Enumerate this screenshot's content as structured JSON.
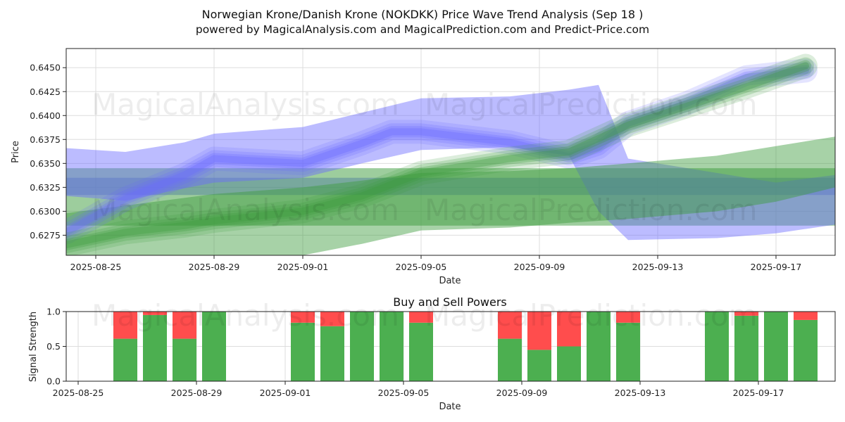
{
  "title": {
    "line1": "Norwegian Krone/Danish Krone (NOKDKK) Price Wave Trend Analysis (Sep 18 )",
    "line2": "powered by MagicalAnalysis.com and MagicalPrediction.com and Predict-Price.com"
  },
  "watermarks": {
    "left": "MagicalAnalysis.com",
    "right": "MagicalPrediction.com"
  },
  "colors": {
    "blue_band": "#6a6aff",
    "green_band": "#3c9c3c",
    "buy": "#4caf50",
    "sell": "#ff4d4d"
  },
  "chart_data": [
    {
      "type": "area",
      "title": "",
      "xlabel": "Date",
      "ylabel": "Price",
      "xlim": [
        "2025-08-24",
        "2025-09-19"
      ],
      "ylim": [
        0.6254,
        0.647
      ],
      "x_ticks": [
        "2025-08-25",
        "2025-08-29",
        "2025-09-01",
        "2025-09-05",
        "2025-09-09",
        "2025-09-13",
        "2025-09-17"
      ],
      "y_ticks": [
        "0.6275",
        "0.6300",
        "0.6325",
        "0.6350",
        "0.6375",
        "0.6400",
        "0.6425",
        "0.6450"
      ],
      "grid": true,
      "series": [
        {
          "color": "blue",
          "band_lower": [
            [
              "2025-08-24",
              0.6316
            ],
            [
              "2025-08-26",
              0.6311
            ],
            [
              "2025-08-28",
              0.6324
            ],
            [
              "2025-08-29",
              0.633
            ],
            [
              "2025-09-01",
              0.6335
            ],
            [
              "2025-09-03",
              0.635
            ],
            [
              "2025-09-05",
              0.6364
            ],
            [
              "2025-09-08",
              0.6367
            ],
            [
              "2025-09-10",
              0.6358
            ],
            [
              "2025-09-11",
              0.63
            ],
            [
              "2025-09-12",
              0.627
            ],
            [
              "2025-09-15",
              0.6272
            ],
            [
              "2025-09-17",
              0.6277
            ],
            [
              "2025-09-19",
              0.6286
            ]
          ],
          "band_upper": [
            [
              "2025-08-24",
              0.6366
            ],
            [
              "2025-08-26",
              0.6362
            ],
            [
              "2025-08-28",
              0.6372
            ],
            [
              "2025-08-29",
              0.6381
            ],
            [
              "2025-09-01",
              0.6388
            ],
            [
              "2025-09-03",
              0.6403
            ],
            [
              "2025-09-05",
              0.6418
            ],
            [
              "2025-09-08",
              0.642
            ],
            [
              "2025-09-10",
              0.6427
            ],
            [
              "2025-09-11",
              0.6432
            ],
            [
              "2025-09-12",
              0.6355
            ],
            [
              "2025-09-15",
              0.634
            ],
            [
              "2025-09-17",
              0.633
            ],
            [
              "2025-09-19",
              0.6338
            ]
          ],
          "wave": [
            [
              "2025-08-24",
              0.6278
            ],
            [
              "2025-08-26",
              0.6313
            ],
            [
              "2025-08-28",
              0.6338
            ],
            [
              "2025-08-29",
              0.6355
            ],
            [
              "2025-09-01",
              0.635
            ],
            [
              "2025-09-03",
              0.6371
            ],
            [
              "2025-09-04",
              0.6383
            ],
            [
              "2025-09-05",
              0.6383
            ],
            [
              "2025-09-08",
              0.6372
            ],
            [
              "2025-09-10",
              0.6357
            ],
            [
              "2025-09-11",
              0.6367
            ],
            [
              "2025-09-12",
              0.6392
            ],
            [
              "2025-09-14",
              0.6413
            ],
            [
              "2025-09-16",
              0.644
            ],
            [
              "2025-09-18",
              0.6447
            ]
          ]
        },
        {
          "color": "green",
          "band_lower": [
            [
              "2025-08-24",
              0.6254
            ],
            [
              "2025-08-29",
              0.6254
            ],
            [
              "2025-09-01",
              0.6254
            ],
            [
              "2025-09-03",
              0.6266
            ],
            [
              "2025-09-05",
              0.628
            ],
            [
              "2025-09-08",
              0.6283
            ],
            [
              "2025-09-10",
              0.6288
            ],
            [
              "2025-09-12",
              0.6292
            ],
            [
              "2025-09-15",
              0.63
            ],
            [
              "2025-09-17",
              0.631
            ],
            [
              "2025-09-19",
              0.6325
            ]
          ],
          "band_upper": [
            [
              "2025-08-24",
              0.6298
            ],
            [
              "2025-08-29",
              0.6318
            ],
            [
              "2025-09-01",
              0.6325
            ],
            [
              "2025-09-03",
              0.6332
            ],
            [
              "2025-09-05",
              0.634
            ],
            [
              "2025-09-08",
              0.6342
            ],
            [
              "2025-09-10",
              0.6345
            ],
            [
              "2025-09-12",
              0.635
            ],
            [
              "2025-09-15",
              0.6358
            ],
            [
              "2025-09-17",
              0.6368
            ],
            [
              "2025-09-19",
              0.6378
            ]
          ],
          "wave": [
            [
              "2025-08-24",
              0.6265
            ],
            [
              "2025-08-26",
              0.6278
            ],
            [
              "2025-08-28",
              0.6285
            ],
            [
              "2025-08-29",
              0.629
            ],
            [
              "2025-09-01",
              0.63
            ],
            [
              "2025-09-03",
              0.6316
            ],
            [
              "2025-09-05",
              0.634
            ],
            [
              "2025-09-08",
              0.6355
            ],
            [
              "2025-09-10",
              0.6362
            ],
            [
              "2025-09-12",
              0.639
            ],
            [
              "2025-09-14",
              0.641
            ],
            [
              "2025-09-16",
              0.643
            ],
            [
              "2025-09-18",
              0.6452
            ]
          ]
        }
      ],
      "flat_bands": [
        {
          "color": "blue",
          "x": [
            "2025-08-24",
            "2025-09-19"
          ],
          "y": [
            0.6317,
            0.6335
          ]
        },
        {
          "color": "green",
          "x": [
            "2025-08-24",
            "2025-09-19"
          ],
          "y": [
            0.6285,
            0.6345
          ]
        }
      ]
    },
    {
      "type": "bar",
      "title": "Buy and Sell Powers",
      "xlabel": "Date",
      "ylabel": "Signal Strength",
      "xlim": [
        "2025-08-24",
        "2025-09-19"
      ],
      "ylim": [
        0,
        1
      ],
      "x_ticks": [
        "2025-08-25",
        "2025-08-29",
        "2025-09-01",
        "2025-09-05",
        "2025-09-09",
        "2025-09-13",
        "2025-09-17"
      ],
      "y_ticks": [
        "0.0",
        "0.5",
        "1.0"
      ],
      "grid": true,
      "series": [
        {
          "name": "buy",
          "x": [
            "2025-08-26",
            "2025-08-27",
            "2025-08-28",
            "2025-08-29",
            "2025-09-01",
            "2025-09-02",
            "2025-09-03",
            "2025-09-04",
            "2025-09-05",
            "2025-09-08",
            "2025-09-09",
            "2025-09-10",
            "2025-09-11",
            "2025-09-12",
            "2025-09-15",
            "2025-09-16",
            "2025-09-17",
            "2025-09-18"
          ],
          "values": [
            0.61,
            0.95,
            0.61,
            1.0,
            0.84,
            0.79,
            1.0,
            1.0,
            0.84,
            0.61,
            0.45,
            0.5,
            1.0,
            0.84,
            1.0,
            0.94,
            1.0,
            0.88
          ]
        },
        {
          "name": "sell",
          "x": [
            "2025-08-26",
            "2025-08-27",
            "2025-08-28",
            "2025-08-29",
            "2025-09-01",
            "2025-09-02",
            "2025-09-03",
            "2025-09-04",
            "2025-09-05",
            "2025-09-08",
            "2025-09-09",
            "2025-09-10",
            "2025-09-11",
            "2025-09-12",
            "2025-09-15",
            "2025-09-16",
            "2025-09-17",
            "2025-09-18"
          ],
          "values": [
            0.39,
            0.05,
            0.39,
            0.0,
            0.16,
            0.21,
            0.0,
            0.0,
            0.16,
            0.39,
            0.55,
            0.5,
            0.0,
            0.16,
            0.0,
            0.06,
            0.0,
            0.12
          ]
        }
      ]
    }
  ]
}
